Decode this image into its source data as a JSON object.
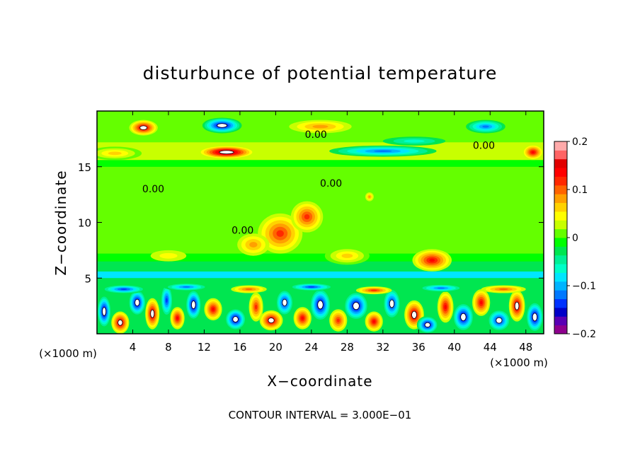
{
  "chart_data": {
    "type": "heatmap",
    "title": "disturbunce of potential temperature",
    "xlabel": "X−coordinate",
    "ylabel": "Z−coordinate",
    "x_unit": "(×1000 m)",
    "x_unit_right": "(×1000 m)",
    "footer": "CONTOUR INTERVAL = 3.000E−01",
    "xlim": [
      0,
      50
    ],
    "ylim": [
      0,
      20
    ],
    "x_ticks": [
      4,
      8,
      12,
      16,
      20,
      24,
      28,
      32,
      36,
      40,
      44,
      48
    ],
    "x_tick_labels": [
      "4",
      "8",
      "12",
      "16",
      "20",
      "24",
      "28",
      "32",
      "36",
      "40",
      "44",
      "48"
    ],
    "y_ticks": [
      5,
      10,
      15
    ],
    "y_tick_labels": [
      "5",
      "10",
      "15"
    ],
    "contour_labels": [
      {
        "text": "0.00",
        "x": 24.5,
        "y": 17.6
      },
      {
        "text": "0.00",
        "x": 43.3,
        "y": 16.6
      },
      {
        "text": "0.00",
        "x": 6.3,
        "y": 12.7
      },
      {
        "text": "0.00",
        "x": 16.3,
        "y": 9.0
      },
      {
        "text": "0.00",
        "x": 26.2,
        "y": 13.2
      }
    ],
    "colorbar": {
      "min": -0.2,
      "max": 0.2,
      "ticks": [
        0.2,
        0.1,
        0,
        -0.1,
        -0.2
      ],
      "tick_labels": [
        "0.2",
        "0.1",
        "0",
        "−0.1",
        "−0.2"
      ],
      "colors": [
        "#8e008e",
        "#5a00b4",
        "#0000c8",
        "#0032ff",
        "#0078ff",
        "#00b4ff",
        "#00e6ff",
        "#00ffc8",
        "#00f096",
        "#00e650",
        "#00ff00",
        "#64ff00",
        "#c8ff00",
        "#ffff00",
        "#ffd200",
        "#ffa000",
        "#ff6400",
        "#ff2800",
        "#ff0000",
        "#e10000",
        "#ff6464",
        "#ffaaaa"
      ]
    },
    "features": [
      {
        "x": 5.2,
        "y": 18.5,
        "value": 0.16,
        "sx": 1.6,
        "sy": 0.7
      },
      {
        "x": 14.5,
        "y": 16.3,
        "value": 0.19,
        "sx": 3.2,
        "sy": 0.6
      },
      {
        "x": 14.0,
        "y": 18.7,
        "value": -0.17,
        "sx": 2.2,
        "sy": 0.7
      },
      {
        "x": 25.0,
        "y": 18.6,
        "value": 0.08,
        "sx": 3.5,
        "sy": 0.6
      },
      {
        "x": 32.0,
        "y": 16.4,
        "value": -0.12,
        "sx": 6.0,
        "sy": 0.5
      },
      {
        "x": 35.5,
        "y": 17.3,
        "value": -0.06,
        "sx": 3.5,
        "sy": 0.4
      },
      {
        "x": 43.5,
        "y": 18.6,
        "value": -0.12,
        "sx": 2.2,
        "sy": 0.6
      },
      {
        "x": 48.8,
        "y": 16.3,
        "value": 0.14,
        "sx": 1.2,
        "sy": 0.7
      },
      {
        "x": 2.0,
        "y": 16.2,
        "value": 0.07,
        "sx": 3.0,
        "sy": 0.6
      },
      {
        "x": 20.5,
        "y": 9.0,
        "value": 0.12,
        "sx": 2.5,
        "sy": 1.8
      },
      {
        "x": 23.5,
        "y": 10.5,
        "value": 0.11,
        "sx": 1.8,
        "sy": 1.4
      },
      {
        "x": 17.5,
        "y": 8.0,
        "value": 0.08,
        "sx": 1.8,
        "sy": 1.0
      },
      {
        "x": 28.0,
        "y": 7.0,
        "value": 0.07,
        "sx": 2.5,
        "sy": 0.8
      },
      {
        "x": 37.5,
        "y": 6.6,
        "value": 0.14,
        "sx": 2.2,
        "sy": 1.0
      },
      {
        "x": 30.5,
        "y": 12.3,
        "value": 0.09,
        "sx": 0.6,
        "sy": 0.5
      },
      {
        "x": 8.0,
        "y": 7.0,
        "value": 0.04,
        "sx": 2.0,
        "sy": 0.5
      },
      {
        "x": 0.8,
        "y": 2.0,
        "value": -0.17,
        "sx": 0.8,
        "sy": 1.5
      },
      {
        "x": 2.6,
        "y": 1.0,
        "value": 0.15,
        "sx": 1.0,
        "sy": 1.0
      },
      {
        "x": 4.5,
        "y": 2.8,
        "value": -0.18,
        "sx": 1.0,
        "sy": 1.2
      },
      {
        "x": 6.2,
        "y": 1.8,
        "value": 0.16,
        "sx": 0.8,
        "sy": 1.4
      },
      {
        "x": 7.8,
        "y": 3.0,
        "value": -0.14,
        "sx": 0.7,
        "sy": 1.5
      },
      {
        "x": 9.0,
        "y": 1.4,
        "value": 0.14,
        "sx": 0.8,
        "sy": 1.0
      },
      {
        "x": 10.8,
        "y": 2.6,
        "value": -0.17,
        "sx": 0.9,
        "sy": 1.4
      },
      {
        "x": 13.0,
        "y": 2.2,
        "value": 0.13,
        "sx": 1.0,
        "sy": 1.0
      },
      {
        "x": 15.5,
        "y": 1.3,
        "value": -0.18,
        "sx": 1.2,
        "sy": 1.0
      },
      {
        "x": 17.8,
        "y": 2.4,
        "value": 0.12,
        "sx": 0.8,
        "sy": 1.3
      },
      {
        "x": 19.5,
        "y": 1.2,
        "value": 0.15,
        "sx": 1.3,
        "sy": 0.9
      },
      {
        "x": 21.0,
        "y": 2.8,
        "value": -0.16,
        "sx": 1.0,
        "sy": 1.2
      },
      {
        "x": 23.0,
        "y": 1.4,
        "value": 0.14,
        "sx": 1.0,
        "sy": 1.0
      },
      {
        "x": 25.0,
        "y": 2.6,
        "value": -0.17,
        "sx": 1.2,
        "sy": 1.5
      },
      {
        "x": 27.0,
        "y": 1.2,
        "value": 0.12,
        "sx": 1.0,
        "sy": 1.0
      },
      {
        "x": 29.0,
        "y": 2.5,
        "value": -0.18,
        "sx": 1.4,
        "sy": 1.3
      },
      {
        "x": 31.0,
        "y": 1.1,
        "value": 0.14,
        "sx": 1.0,
        "sy": 0.9
      },
      {
        "x": 33.0,
        "y": 2.7,
        "value": -0.16,
        "sx": 1.0,
        "sy": 1.4
      },
      {
        "x": 35.5,
        "y": 1.7,
        "value": 0.15,
        "sx": 1.1,
        "sy": 1.3
      },
      {
        "x": 37.0,
        "y": 0.8,
        "value": -0.17,
        "sx": 1.2,
        "sy": 0.8
      },
      {
        "x": 39.0,
        "y": 2.4,
        "value": 0.14,
        "sx": 0.9,
        "sy": 1.4
      },
      {
        "x": 41.0,
        "y": 1.5,
        "value": -0.18,
        "sx": 1.2,
        "sy": 1.3
      },
      {
        "x": 43.0,
        "y": 2.8,
        "value": 0.13,
        "sx": 1.0,
        "sy": 1.2
      },
      {
        "x": 45.0,
        "y": 1.2,
        "value": -0.16,
        "sx": 1.3,
        "sy": 1.0
      },
      {
        "x": 47.0,
        "y": 2.5,
        "value": 0.15,
        "sx": 0.9,
        "sy": 1.4
      },
      {
        "x": 49.0,
        "y": 1.5,
        "value": -0.17,
        "sx": 1.0,
        "sy": 1.4
      },
      {
        "x": 3.0,
        "y": 4.0,
        "value": -0.14,
        "sx": 2.5,
        "sy": 0.4
      },
      {
        "x": 10.0,
        "y": 4.2,
        "value": -0.12,
        "sx": 2.5,
        "sy": 0.35
      },
      {
        "x": 17.0,
        "y": 4.0,
        "value": 0.1,
        "sx": 2.0,
        "sy": 0.35
      },
      {
        "x": 24.0,
        "y": 4.2,
        "value": -0.13,
        "sx": 2.5,
        "sy": 0.35
      },
      {
        "x": 31.0,
        "y": 3.9,
        "value": 0.11,
        "sx": 2.0,
        "sy": 0.35
      },
      {
        "x": 38.5,
        "y": 4.1,
        "value": -0.12,
        "sx": 2.5,
        "sy": 0.35
      },
      {
        "x": 45.5,
        "y": 4.0,
        "value": 0.1,
        "sx": 2.5,
        "sy": 0.35
      }
    ]
  }
}
